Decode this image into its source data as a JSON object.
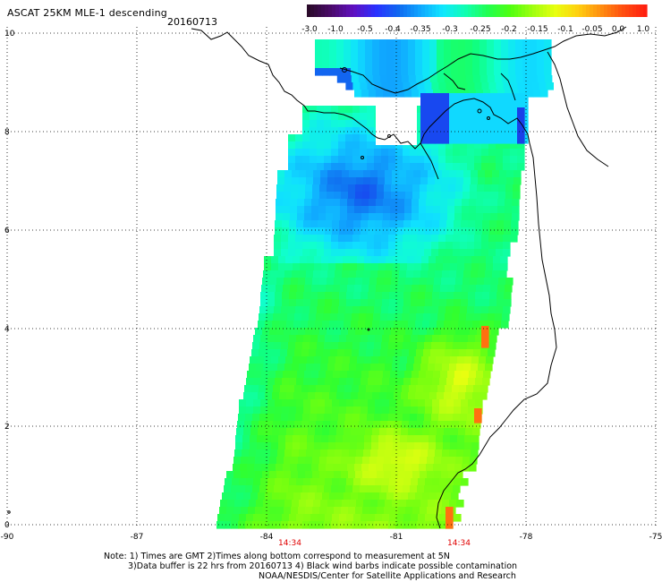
{
  "header": {
    "title": "ASCAT 25KM MLE-1 descending",
    "date": "20160713"
  },
  "colorbar": {
    "labels": [
      "-3.0",
      "-1.0",
      "-0.5",
      "-0.4",
      "-0.35",
      "-0.3",
      "-0.25",
      "-0.2",
      "-0.15",
      "-0.1",
      "-0.05",
      "0.0",
      "1.0"
    ],
    "colors": [
      "#2a0a2a",
      "#5a0fa0",
      "#2020ff",
      "#1060f0",
      "#10a0ff",
      "#10ffff",
      "#10ff90",
      "#30ff10",
      "#90ff10",
      "#ffff10",
      "#ffa010",
      "#ff3010"
    ]
  },
  "axes": {
    "x_ticks": [
      "-90",
      "-87",
      "-84",
      "-81",
      "-78",
      "-75"
    ],
    "y_ticks": [
      "0",
      "2",
      "4",
      "6",
      "8",
      "10"
    ],
    "time_labels": [
      "14:34",
      "14:34"
    ]
  },
  "map": {
    "region": "Eastern Pacific off Central and South America",
    "lon_range": [
      -90,
      -75
    ],
    "lat_range": [
      0,
      10
    ],
    "land_color": "#ffffff",
    "coast_color": "#000000"
  },
  "notes": {
    "line1": "Note: 1) Times are GMT 2)Times along bottom correspond to measurement at 5N",
    "line2": "3)Data buffer is 22 hrs from 20160713 4) Black wind barbs indicate possible contamination",
    "credit": "NOAA/NESDIS/Center for Satellite Applications and Research"
  }
}
